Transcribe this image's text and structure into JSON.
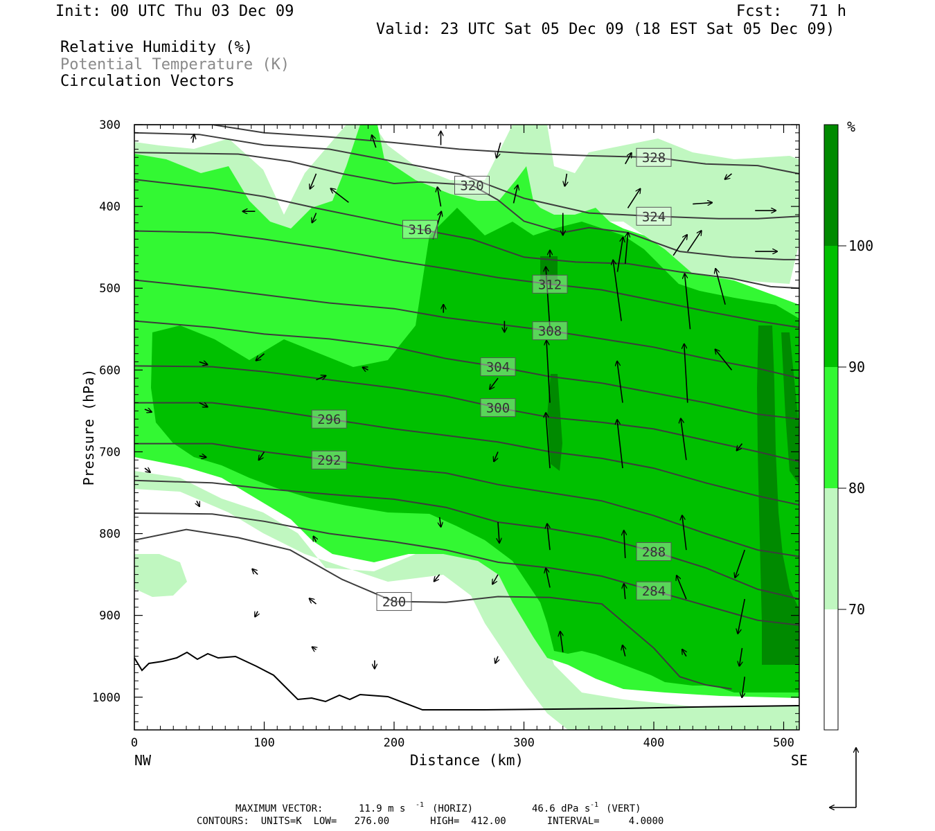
{
  "header": {
    "init": "Init: 00 UTC Thu 03 Dec 09",
    "fcst": "Fcst:   71 h",
    "valid": "Valid: 23 UTC Sat 05 Dec 09 (18 EST Sat 05 Dec 09)"
  },
  "legend_lines": {
    "rh": "Relative Humidity (%)",
    "theta": "Potential Temperature (K)",
    "vectors": "Circulation Vectors"
  },
  "footer": {
    "max_vector_label": "MAXIMUM VECTOR:",
    "max_vector_horiz": "11.9 m s",
    "max_vector_horiz_unit": "(HORIZ)",
    "max_vector_vert": "46.6 dPa s",
    "max_vector_vert_unit": "(VERT)",
    "exp": "-1",
    "contours": "CONTOURS:  UNITS=K  LOW=   276.00       HIGH=  412.00       INTERVAL=     4.0000"
  },
  "colors": {
    "rh_70_80": "#c0f7c0",
    "rh_80_90": "#33f833",
    "rh_90_100": "#00c000",
    "rh_100": "#008a00",
    "contour": "#3c3c3c",
    "terrain": "#000000"
  },
  "chart_data": {
    "type": "cross-section",
    "title": "Relative Humidity (%) / Potential Temperature (K) / Circulation Vectors",
    "xlabel": "Distance (km)",
    "ylabel": "Pressure (hPa)",
    "xlim": [
      0,
      512
    ],
    "ylim": [
      1040,
      300
    ],
    "x_ticks": [
      "0",
      "100",
      "200",
      "300",
      "400",
      "500"
    ],
    "x_tick_values": [
      0,
      100,
      200,
      300,
      400,
      500
    ],
    "y_ticks": [
      "300",
      "400",
      "500",
      "600",
      "700",
      "800",
      "900",
      "1000"
    ],
    "y_tick_values": [
      300,
      400,
      500,
      600,
      700,
      800,
      900,
      1000
    ],
    "x_end_labels": {
      "left": "NW",
      "right": "SE"
    },
    "colorbar": {
      "unit": "%",
      "labels": [
        "100",
        "90",
        "80",
        "70"
      ],
      "levels": [
        100,
        90,
        80,
        70
      ]
    },
    "theta_contours": [
      {
        "label": "328",
        "pts": [
          [
            0,
            300
          ],
          [
            60,
            300
          ],
          [
            100,
            310
          ],
          [
            150,
            315
          ],
          [
            200,
            322
          ],
          [
            250,
            330
          ],
          [
            300,
            335
          ],
          [
            350,
            338
          ],
          [
            400,
            340
          ],
          [
            440,
            348
          ],
          [
            480,
            350
          ],
          [
            512,
            360
          ]
        ]
      },
      {
        "label": "324",
        "pts": [
          [
            0,
            310
          ],
          [
            50,
            312
          ],
          [
            100,
            325
          ],
          [
            150,
            330
          ],
          [
            200,
            345
          ],
          [
            250,
            360
          ],
          [
            300,
            390
          ],
          [
            350,
            408
          ],
          [
            400,
            412
          ],
          [
            450,
            415
          ],
          [
            480,
            415
          ],
          [
            512,
            412
          ]
        ]
      },
      {
        "label": "320",
        "pts": [
          [
            0,
            334
          ],
          [
            80,
            336
          ],
          [
            120,
            345
          ],
          [
            160,
            360
          ],
          [
            200,
            372
          ],
          [
            220,
            370
          ],
          [
            260,
            374
          ],
          [
            280,
            392
          ],
          [
            300,
            418
          ],
          [
            330,
            432
          ],
          [
            350,
            426
          ],
          [
            380,
            432
          ],
          [
            420,
            455
          ],
          [
            460,
            462
          ],
          [
            500,
            465
          ],
          [
            512,
            465
          ]
        ]
      },
      {
        "label": "316",
        "pts": [
          [
            0,
            367
          ],
          [
            60,
            378
          ],
          [
            100,
            388
          ],
          [
            140,
            402
          ],
          [
            180,
            415
          ],
          [
            220,
            428
          ],
          [
            260,
            440
          ],
          [
            300,
            462
          ],
          [
            340,
            468
          ],
          [
            380,
            470
          ],
          [
            420,
            480
          ],
          [
            460,
            488
          ],
          [
            490,
            498
          ],
          [
            512,
            500
          ]
        ]
      },
      {
        "label": "312",
        "pts": [
          [
            0,
            430
          ],
          [
            60,
            432
          ],
          [
            100,
            440
          ],
          [
            150,
            452
          ],
          [
            200,
            466
          ],
          [
            240,
            476
          ],
          [
            280,
            487
          ],
          [
            320,
            495
          ],
          [
            360,
            502
          ],
          [
            400,
            515
          ],
          [
            440,
            528
          ],
          [
            480,
            540
          ],
          [
            512,
            548
          ]
        ]
      },
      {
        "label": "308",
        "pts": [
          [
            0,
            490
          ],
          [
            60,
            500
          ],
          [
            100,
            508
          ],
          [
            150,
            518
          ],
          [
            200,
            525
          ],
          [
            240,
            536
          ],
          [
            280,
            544
          ],
          [
            320,
            552
          ],
          [
            360,
            562
          ],
          [
            400,
            572
          ],
          [
            440,
            586
          ],
          [
            480,
            598
          ],
          [
            512,
            610
          ]
        ]
      },
      {
        "label": "304",
        "pts": [
          [
            0,
            540
          ],
          [
            60,
            548
          ],
          [
            100,
            556
          ],
          [
            150,
            562
          ],
          [
            200,
            572
          ],
          [
            240,
            586
          ],
          [
            280,
            596
          ],
          [
            320,
            608
          ],
          [
            360,
            616
          ],
          [
            400,
            628
          ],
          [
            440,
            640
          ],
          [
            480,
            654
          ],
          [
            512,
            660
          ]
        ]
      },
      {
        "label": "300",
        "pts": [
          [
            0,
            595
          ],
          [
            60,
            596
          ],
          [
            100,
            602
          ],
          [
            150,
            612
          ],
          [
            200,
            622
          ],
          [
            240,
            632
          ],
          [
            280,
            646
          ],
          [
            320,
            658
          ],
          [
            360,
            664
          ],
          [
            400,
            672
          ],
          [
            440,
            686
          ],
          [
            480,
            700
          ],
          [
            512,
            712
          ]
        ]
      },
      {
        "label": "296",
        "pts": [
          [
            0,
            640
          ],
          [
            60,
            640
          ],
          [
            100,
            648
          ],
          [
            150,
            660
          ],
          [
            200,
            672
          ],
          [
            240,
            680
          ],
          [
            280,
            688
          ],
          [
            320,
            700
          ],
          [
            360,
            708
          ],
          [
            400,
            720
          ],
          [
            440,
            738
          ],
          [
            480,
            754
          ],
          [
            512,
            765
          ]
        ]
      },
      {
        "label": "292",
        "pts": [
          [
            0,
            690
          ],
          [
            60,
            690
          ],
          [
            100,
            700
          ],
          [
            150,
            710
          ],
          [
            200,
            720
          ],
          [
            240,
            726
          ],
          [
            280,
            740
          ],
          [
            320,
            750
          ],
          [
            360,
            760
          ],
          [
            400,
            778
          ],
          [
            440,
            800
          ],
          [
            480,
            820
          ],
          [
            512,
            828
          ]
        ]
      },
      {
        "label": "288",
        "pts": [
          [
            0,
            735
          ],
          [
            60,
            738
          ],
          [
            100,
            745
          ],
          [
            150,
            752
          ],
          [
            200,
            758
          ],
          [
            240,
            768
          ],
          [
            280,
            786
          ],
          [
            320,
            794
          ],
          [
            360,
            805
          ],
          [
            400,
            822
          ],
          [
            440,
            842
          ],
          [
            480,
            868
          ],
          [
            512,
            880
          ]
        ]
      },
      {
        "label": "284",
        "pts": [
          [
            0,
            775
          ],
          [
            60,
            776
          ],
          [
            100,
            785
          ],
          [
            150,
            800
          ],
          [
            200,
            810
          ],
          [
            240,
            820
          ],
          [
            280,
            835
          ],
          [
            320,
            842
          ],
          [
            360,
            852
          ],
          [
            400,
            870
          ],
          [
            440,
            888
          ],
          [
            480,
            906
          ],
          [
            512,
            912
          ]
        ]
      },
      {
        "label": "280",
        "pts": [
          [
            0,
            808
          ],
          [
            40,
            795
          ],
          [
            80,
            805
          ],
          [
            120,
            820
          ],
          [
            160,
            856
          ],
          [
            200,
            883
          ],
          [
            240,
            884
          ],
          [
            280,
            877
          ],
          [
            320,
            878
          ],
          [
            360,
            886
          ],
          [
            400,
            940
          ],
          [
            420,
            975
          ],
          [
            440,
            985
          ],
          [
            460,
            990
          ]
        ]
      }
    ],
    "vectors": [
      {
        "x": 45,
        "p": 322,
        "u": 2,
        "v": -12
      },
      {
        "x": 140,
        "p": 360,
        "u": -9,
        "v": 22
      },
      {
        "x": 186,
        "p": 328,
        "u": -6,
        "v": -18
      },
      {
        "x": 236,
        "p": 325,
        "u": 0,
        "v": -20
      },
      {
        "x": 282,
        "p": 322,
        "u": -6,
        "v": 22
      },
      {
        "x": 333,
        "p": 360,
        "u": -3,
        "v": 18
      },
      {
        "x": 378,
        "p": 348,
        "u": 9,
        "v": -16
      },
      {
        "x": 460,
        "p": 360,
        "u": -10,
        "v": 8
      },
      {
        "x": 93,
        "p": 406,
        "u": -18,
        "v": 0
      },
      {
        "x": 140,
        "p": 408,
        "u": -6,
        "v": 14
      },
      {
        "x": 165,
        "p": 395,
        "u": -26,
        "v": -20
      },
      {
        "x": 236,
        "p": 400,
        "u": -5,
        "v": -28
      },
      {
        "x": 292,
        "p": 396,
        "u": 6,
        "v": -26
      },
      {
        "x": 330,
        "p": 408,
        "u": 0,
        "v": 32
      },
      {
        "x": 380,
        "p": 402,
        "u": 18,
        "v": -28
      },
      {
        "x": 430,
        "p": 397,
        "u": 28,
        "v": -2
      },
      {
        "x": 478,
        "p": 405,
        "u": 30,
        "v": 0
      },
      {
        "x": 230,
        "p": 440,
        "u": 12,
        "v": -40
      },
      {
        "x": 320,
        "p": 462,
        "u": 0,
        "v": -10
      },
      {
        "x": 372,
        "p": 480,
        "u": 8,
        "v": -50
      },
      {
        "x": 378,
        "p": 470,
        "u": 4,
        "v": -45
      },
      {
        "x": 415,
        "p": 460,
        "u": 20,
        "v": -30
      },
      {
        "x": 426,
        "p": 455,
        "u": 20,
        "v": -30
      },
      {
        "x": 478,
        "p": 455,
        "u": 32,
        "v": 0
      },
      {
        "x": 320,
        "p": 550,
        "u": -6,
        "v": -90
      },
      {
        "x": 375,
        "p": 540,
        "u": -12,
        "v": -88
      },
      {
        "x": 428,
        "p": 550,
        "u": -8,
        "v": -80
      },
      {
        "x": 455,
        "p": 520,
        "u": -14,
        "v": -52
      },
      {
        "x": 238,
        "p": 530,
        "u": 0,
        "v": -12
      },
      {
        "x": 285,
        "p": 540,
        "u": 0,
        "v": 16
      },
      {
        "x": 320,
        "p": 640,
        "u": -5,
        "v": -90
      },
      {
        "x": 376,
        "p": 640,
        "u": -8,
        "v": -60
      },
      {
        "x": 426,
        "p": 640,
        "u": -5,
        "v": -85
      },
      {
        "x": 460,
        "p": 600,
        "u": -24,
        "v": -30
      },
      {
        "x": 280,
        "p": 610,
        "u": -12,
        "v": 16
      },
      {
        "x": 100,
        "p": 580,
        "u": -12,
        "v": 10
      },
      {
        "x": 50,
        "p": 590,
        "u": 12,
        "v": 4
      },
      {
        "x": 140,
        "p": 612,
        "u": 14,
        "v": -6
      },
      {
        "x": 180,
        "p": 600,
        "u": -8,
        "v": -4
      },
      {
        "x": 320,
        "p": 720,
        "u": -6,
        "v": -80
      },
      {
        "x": 376,
        "p": 720,
        "u": -8,
        "v": -70
      },
      {
        "x": 425,
        "p": 710,
        "u": -8,
        "v": -60
      },
      {
        "x": 468,
        "p": 690,
        "u": -8,
        "v": 10
      },
      {
        "x": 280,
        "p": 700,
        "u": -6,
        "v": 14
      },
      {
        "x": 100,
        "p": 700,
        "u": -8,
        "v": 12
      },
      {
        "x": 50,
        "p": 705,
        "u": 10,
        "v": 2
      },
      {
        "x": 320,
        "p": 820,
        "u": -4,
        "v": -38
      },
      {
        "x": 378,
        "p": 830,
        "u": -2,
        "v": -40
      },
      {
        "x": 425,
        "p": 820,
        "u": -6,
        "v": -50
      },
      {
        "x": 470,
        "p": 820,
        "u": -14,
        "v": 40
      },
      {
        "x": 280,
        "p": 786,
        "u": 2,
        "v": 30
      },
      {
        "x": 235,
        "p": 780,
        "u": 2,
        "v": 14
      },
      {
        "x": 140,
        "p": 810,
        "u": -4,
        "v": -8
      },
      {
        "x": 95,
        "p": 850,
        "u": -8,
        "v": -8
      },
      {
        "x": 235,
        "p": 850,
        "u": -8,
        "v": 10
      },
      {
        "x": 280,
        "p": 850,
        "u": -8,
        "v": 14
      },
      {
        "x": 320,
        "p": 866,
        "u": -6,
        "v": -28
      },
      {
        "x": 378,
        "p": 880,
        "u": -2,
        "v": -22
      },
      {
        "x": 425,
        "p": 880,
        "u": -14,
        "v": -34
      },
      {
        "x": 470,
        "p": 880,
        "u": -10,
        "v": 50
      },
      {
        "x": 140,
        "p": 886,
        "u": -10,
        "v": -8
      },
      {
        "x": 95,
        "p": 895,
        "u": -4,
        "v": 8
      },
      {
        "x": 330,
        "p": 945,
        "u": -4,
        "v": -30
      },
      {
        "x": 378,
        "p": 950,
        "u": -4,
        "v": -16
      },
      {
        "x": 425,
        "p": 950,
        "u": -6,
        "v": -10
      },
      {
        "x": 468,
        "p": 940,
        "u": -4,
        "v": 26
      },
      {
        "x": 470,
        "p": 975,
        "u": -4,
        "v": 30
      },
      {
        "x": 185,
        "p": 955,
        "u": 0,
        "v": 12
      },
      {
        "x": 140,
        "p": 942,
        "u": -6,
        "v": -4
      },
      {
        "x": 280,
        "p": 950,
        "u": -4,
        "v": 10
      },
      {
        "x": 48,
        "p": 760,
        "u": 4,
        "v": 8
      },
      {
        "x": 8,
        "p": 720,
        "u": 8,
        "v": 6
      },
      {
        "x": 8,
        "p": 648,
        "u": 10,
        "v": 4
      },
      {
        "x": 50,
        "p": 640,
        "u": 12,
        "v": 6
      }
    ]
  }
}
